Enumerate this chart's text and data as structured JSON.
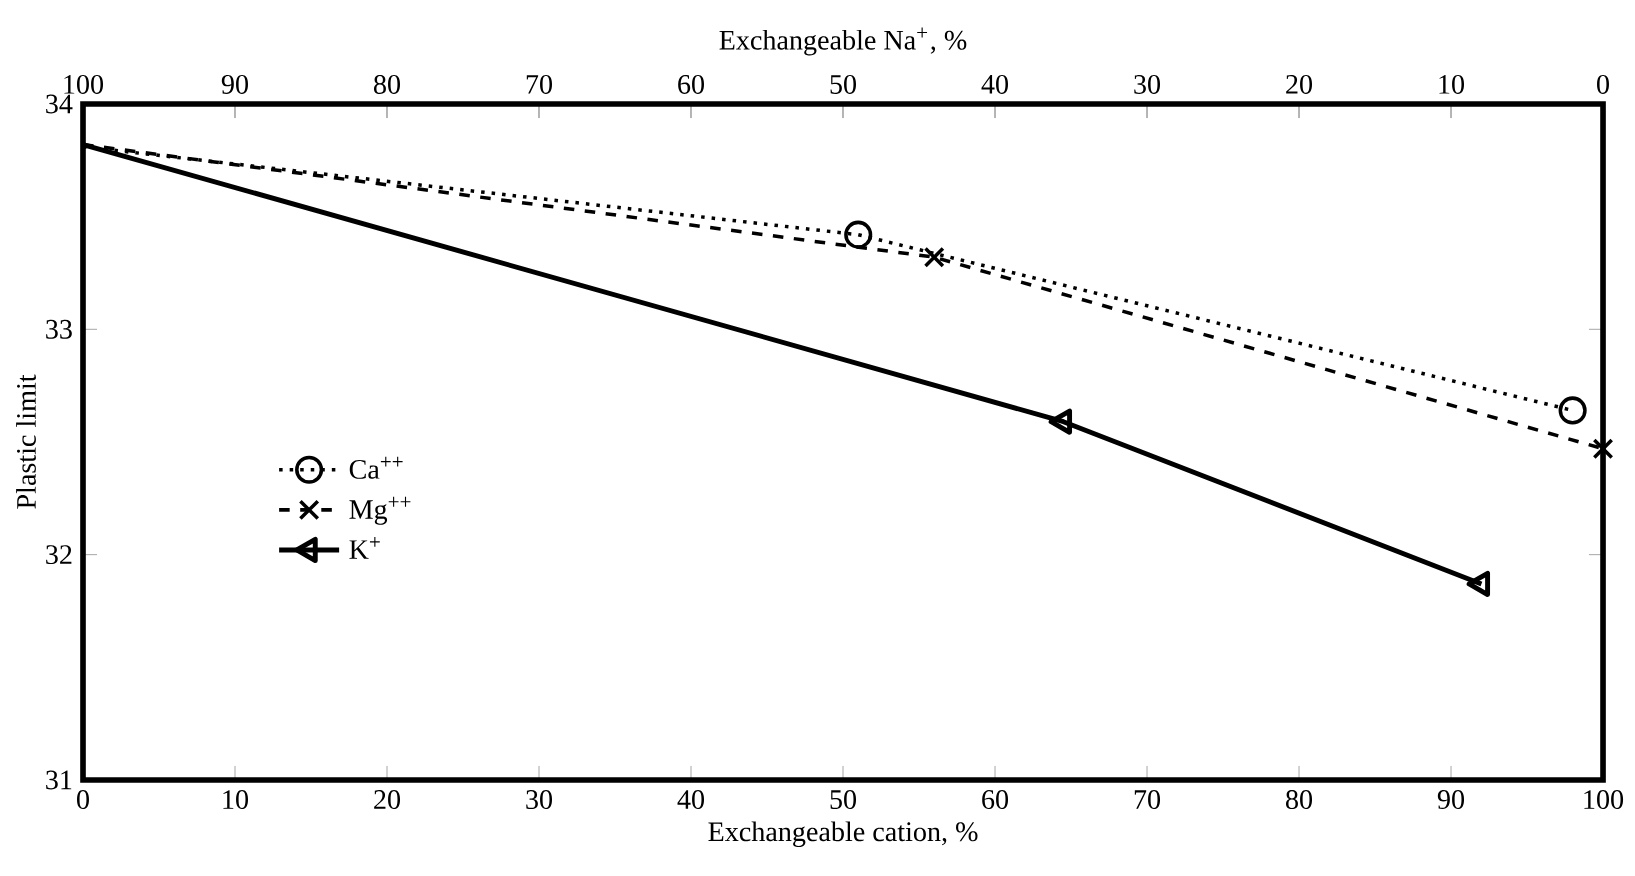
{
  "chart_data": {
    "type": "line",
    "xlabel": "Exchangeable cation, %",
    "ylabel": "Plastic limit",
    "x2label": "Exchangeable Na$^{+}$, %",
    "xlim": [
      0,
      100
    ],
    "xticks": [
      0,
      10,
      20,
      30,
      40,
      50,
      60,
      70,
      80,
      90,
      100
    ],
    "x2lim": [
      100,
      0
    ],
    "x2ticks": [
      100,
      90,
      80,
      70,
      60,
      50,
      40,
      30,
      20,
      10,
      0
    ],
    "ylim": [
      31,
      34
    ],
    "yticks": [
      31,
      32,
      33,
      34
    ],
    "grid": false,
    "legend": "left",
    "series": [
      {
        "name": "Ca$^{++}$",
        "color": "#000000",
        "marker": "circle",
        "line_style": "dotted",
        "x": [
          0,
          51,
          98
        ],
        "values": [
          33.81,
          33.42,
          32.64
        ]
      },
      {
        "name": "Mg$^{++}$",
        "color": "#000000",
        "marker": "cross",
        "line_style": "dashed",
        "x": [
          0,
          56,
          100
        ],
        "values": [
          33.82,
          33.32,
          32.47
        ]
      },
      {
        "name": "K$^{+}$",
        "color": "#000000",
        "marker": "triangle",
        "line_style": "solid",
        "x": [
          0,
          64.5,
          92
        ],
        "values": [
          33.82,
          32.59,
          31.87
        ]
      }
    ]
  }
}
